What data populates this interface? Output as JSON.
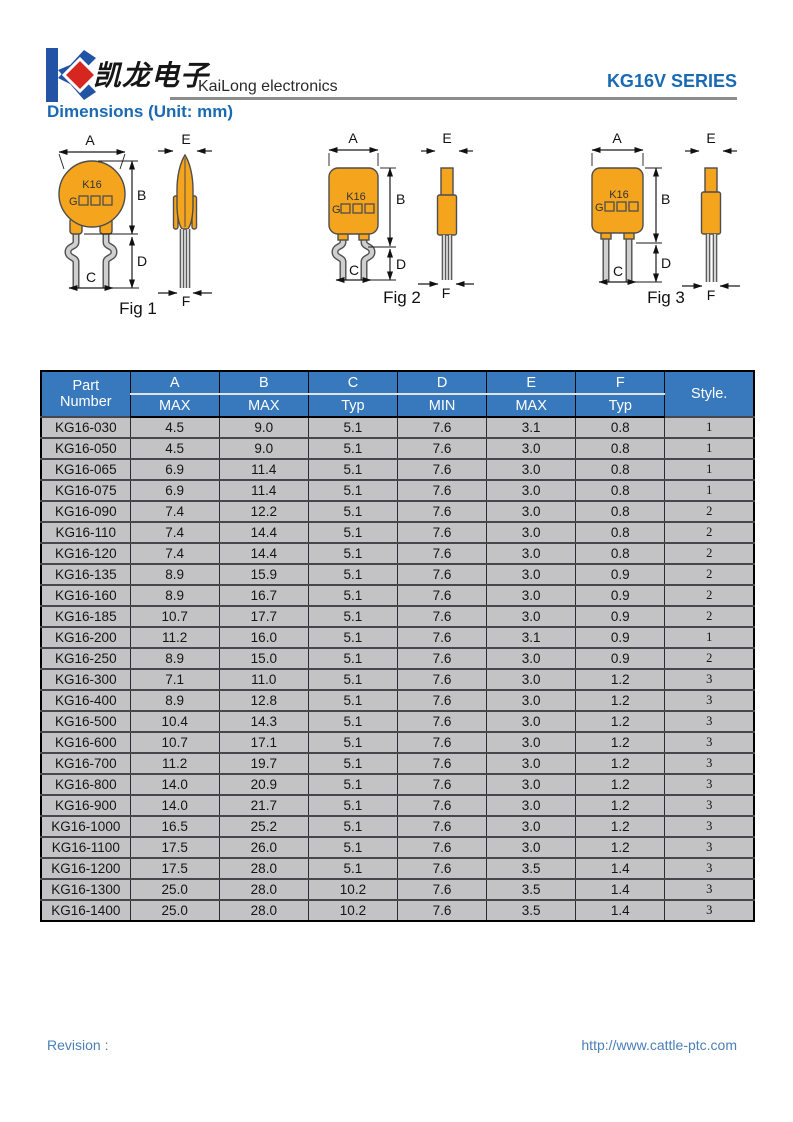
{
  "header": {
    "logo_text_cn": "凯龙电子",
    "company": "KaiLong electronics",
    "series": "KG16V SERIES",
    "section_title": "Dimensions (Unit: mm)"
  },
  "figures": {
    "marking_line1": "K16",
    "marking_prefix": "G",
    "dims": [
      "A",
      "B",
      "C",
      "D",
      "E",
      "F"
    ],
    "captions": [
      "Fig 1",
      "Fig 2",
      "Fig 3"
    ]
  },
  "table": {
    "part_line1": "Part",
    "part_line2": "Number",
    "style_label": "Style.",
    "columns": [
      {
        "dim": "A",
        "spec": "MAX"
      },
      {
        "dim": "B",
        "spec": "MAX"
      },
      {
        "dim": "C",
        "spec": "Typ"
      },
      {
        "dim": "D",
        "spec": "MIN"
      },
      {
        "dim": "E",
        "spec": "MAX"
      },
      {
        "dim": "F",
        "spec": "Typ"
      }
    ],
    "rows": [
      [
        "KG16-030",
        "4.5",
        "9.0",
        "5.1",
        "7.6",
        "3.1",
        "0.8",
        "1"
      ],
      [
        "KG16-050",
        "4.5",
        "9.0",
        "5.1",
        "7.6",
        "3.0",
        "0.8",
        "1"
      ],
      [
        "KG16-065",
        "6.9",
        "11.4",
        "5.1",
        "7.6",
        "3.0",
        "0.8",
        "1"
      ],
      [
        "KG16-075",
        "6.9",
        "11.4",
        "5.1",
        "7.6",
        "3.0",
        "0.8",
        "1"
      ],
      [
        "KG16-090",
        "7.4",
        "12.2",
        "5.1",
        "7.6",
        "3.0",
        "0.8",
        "2"
      ],
      [
        "KG16-110",
        "7.4",
        "14.4",
        "5.1",
        "7.6",
        "3.0",
        "0.8",
        "2"
      ],
      [
        "KG16-120",
        "7.4",
        "14.4",
        "5.1",
        "7.6",
        "3.0",
        "0.8",
        "2"
      ],
      [
        "KG16-135",
        "8.9",
        "15.9",
        "5.1",
        "7.6",
        "3.0",
        "0.9",
        "2"
      ],
      [
        "KG16-160",
        "8.9",
        "16.7",
        "5.1",
        "7.6",
        "3.0",
        "0.9",
        "2"
      ],
      [
        "KG16-185",
        "10.7",
        "17.7",
        "5.1",
        "7.6",
        "3.0",
        "0.9",
        "2"
      ],
      [
        "KG16-200",
        "11.2",
        "16.0",
        "5.1",
        "7.6",
        "3.1",
        "0.9",
        "1"
      ],
      [
        "KG16-250",
        "8.9",
        "15.0",
        "5.1",
        "7.6",
        "3.0",
        "0.9",
        "2"
      ],
      [
        "KG16-300",
        "7.1",
        "11.0",
        "5.1",
        "7.6",
        "3.0",
        "1.2",
        "3"
      ],
      [
        "KG16-400",
        "8.9",
        "12.8",
        "5.1",
        "7.6",
        "3.0",
        "1.2",
        "3"
      ],
      [
        "KG16-500",
        "10.4",
        "14.3",
        "5.1",
        "7.6",
        "3.0",
        "1.2",
        "3"
      ],
      [
        "KG16-600",
        "10.7",
        "17.1",
        "5.1",
        "7.6",
        "3.0",
        "1.2",
        "3"
      ],
      [
        "KG16-700",
        "11.2",
        "19.7",
        "5.1",
        "7.6",
        "3.0",
        "1.2",
        "3"
      ],
      [
        "KG16-800",
        "14.0",
        "20.9",
        "5.1",
        "7.6",
        "3.0",
        "1.2",
        "3"
      ],
      [
        "KG16-900",
        "14.0",
        "21.7",
        "5.1",
        "7.6",
        "3.0",
        "1.2",
        "3"
      ],
      [
        "KG16-1000",
        "16.5",
        "25.2",
        "5.1",
        "7.6",
        "3.0",
        "1.2",
        "3"
      ],
      [
        "KG16-1100",
        "17.5",
        "26.0",
        "5.1",
        "7.6",
        "3.0",
        "1.2",
        "3"
      ],
      [
        "KG16-1200",
        "17.5",
        "28.0",
        "5.1",
        "7.6",
        "3.5",
        "1.4",
        "3"
      ],
      [
        "KG16-1300",
        "25.0",
        "28.0",
        "10.2",
        "7.6",
        "3.5",
        "1.4",
        "3"
      ],
      [
        "KG16-1400",
        "25.0",
        "28.0",
        "10.2",
        "7.6",
        "3.5",
        "1.4",
        "3"
      ]
    ]
  },
  "footer": {
    "revision_label": "Revision :",
    "url": "http://www.cattle-ptc.com"
  },
  "colors": {
    "table_header_blue": "#3879BD",
    "table_row_gray": "#C3C3C5",
    "accent_blue": "#1A6AB3",
    "body_orange": "#F5A51D",
    "logo_blue": "#2353A4",
    "logo_red": "#D5261F",
    "rule_gray": "#8C8C8C"
  }
}
